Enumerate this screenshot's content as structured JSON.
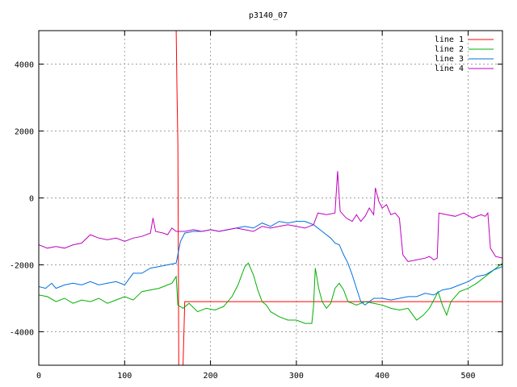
{
  "chart_data": {
    "type": "line",
    "title": "p3140_07",
    "xlabel": "",
    "ylabel": "",
    "xlim": [
      0,
      540
    ],
    "ylim": [
      -5000,
      5000
    ],
    "xticks": [
      0,
      100,
      200,
      300,
      400,
      500
    ],
    "yticks": [
      -4000,
      -2000,
      0,
      2000,
      4000
    ],
    "grid": true,
    "legend_position": "top-right",
    "series": [
      {
        "name": "line 1",
        "color": "#ff0000",
        "points": [
          [
            160,
            5000
          ],
          [
            161,
            3200
          ],
          [
            162,
            1600
          ],
          [
            163,
            -5000
          ],
          [
            168,
            -5000
          ],
          [
            170,
            -3100
          ],
          [
            540,
            -3100
          ]
        ]
      },
      {
        "name": "line 2",
        "color": "#00b000",
        "points": [
          [
            0,
            -2900
          ],
          [
            10,
            -2950
          ],
          [
            20,
            -3100
          ],
          [
            30,
            -3000
          ],
          [
            40,
            -3150
          ],
          [
            50,
            -3050
          ],
          [
            60,
            -3100
          ],
          [
            70,
            -3000
          ],
          [
            80,
            -3150
          ],
          [
            90,
            -3050
          ],
          [
            100,
            -2950
          ],
          [
            110,
            -3050
          ],
          [
            120,
            -2800
          ],
          [
            130,
            -2750
          ],
          [
            140,
            -2700
          ],
          [
            150,
            -2600
          ],
          [
            155,
            -2550
          ],
          [
            160,
            -2350
          ],
          [
            162,
            -3200
          ],
          [
            168,
            -3300
          ],
          [
            175,
            -3150
          ],
          [
            185,
            -3400
          ],
          [
            195,
            -3300
          ],
          [
            205,
            -3350
          ],
          [
            215,
            -3250
          ],
          [
            225,
            -2950
          ],
          [
            232,
            -2600
          ],
          [
            240,
            -2050
          ],
          [
            244,
            -1950
          ],
          [
            250,
            -2300
          ],
          [
            255,
            -2750
          ],
          [
            260,
            -3100
          ],
          [
            265,
            -3200
          ],
          [
            270,
            -3400
          ],
          [
            280,
            -3550
          ],
          [
            290,
            -3650
          ],
          [
            300,
            -3650
          ],
          [
            310,
            -3750
          ],
          [
            318,
            -3750
          ],
          [
            320,
            -3250
          ],
          [
            322,
            -2100
          ],
          [
            326,
            -2700
          ],
          [
            330,
            -3100
          ],
          [
            335,
            -3300
          ],
          [
            340,
            -3150
          ],
          [
            345,
            -2700
          ],
          [
            350,
            -2550
          ],
          [
            355,
            -2750
          ],
          [
            360,
            -3100
          ],
          [
            370,
            -3200
          ],
          [
            380,
            -3100
          ],
          [
            390,
            -3150
          ],
          [
            400,
            -3200
          ],
          [
            410,
            -3300
          ],
          [
            420,
            -3350
          ],
          [
            430,
            -3300
          ],
          [
            440,
            -3650
          ],
          [
            448,
            -3500
          ],
          [
            455,
            -3300
          ],
          [
            460,
            -3050
          ],
          [
            465,
            -2800
          ],
          [
            470,
            -3200
          ],
          [
            475,
            -3500
          ],
          [
            480,
            -3100
          ],
          [
            490,
            -2800
          ],
          [
            500,
            -2700
          ],
          [
            510,
            -2550
          ],
          [
            520,
            -2350
          ],
          [
            530,
            -2150
          ],
          [
            540,
            -1950
          ]
        ]
      },
      {
        "name": "line 3",
        "color": "#0070e0",
        "points": [
          [
            0,
            -2650
          ],
          [
            8,
            -2700
          ],
          [
            15,
            -2550
          ],
          [
            20,
            -2700
          ],
          [
            30,
            -2600
          ],
          [
            40,
            -2550
          ],
          [
            50,
            -2600
          ],
          [
            60,
            -2500
          ],
          [
            70,
            -2600
          ],
          [
            80,
            -2550
          ],
          [
            90,
            -2500
          ],
          [
            100,
            -2600
          ],
          [
            110,
            -2250
          ],
          [
            120,
            -2250
          ],
          [
            130,
            -2100
          ],
          [
            140,
            -2050
          ],
          [
            150,
            -2000
          ],
          [
            160,
            -1950
          ],
          [
            165,
            -1300
          ],
          [
            170,
            -1050
          ],
          [
            180,
            -1000
          ],
          [
            190,
            -1000
          ],
          [
            200,
            -950
          ],
          [
            210,
            -1000
          ],
          [
            220,
            -950
          ],
          [
            230,
            -900
          ],
          [
            240,
            -850
          ],
          [
            250,
            -900
          ],
          [
            260,
            -750
          ],
          [
            270,
            -850
          ],
          [
            280,
            -700
          ],
          [
            290,
            -750
          ],
          [
            300,
            -700
          ],
          [
            310,
            -700
          ],
          [
            320,
            -800
          ],
          [
            330,
            -1000
          ],
          [
            340,
            -1200
          ],
          [
            345,
            -1350
          ],
          [
            350,
            -1400
          ],
          [
            355,
            -1700
          ],
          [
            360,
            -1950
          ],
          [
            365,
            -2300
          ],
          [
            370,
            -2700
          ],
          [
            375,
            -3100
          ],
          [
            380,
            -3200
          ],
          [
            390,
            -3000
          ],
          [
            400,
            -3000
          ],
          [
            410,
            -3050
          ],
          [
            420,
            -3000
          ],
          [
            430,
            -2950
          ],
          [
            440,
            -2950
          ],
          [
            450,
            -2850
          ],
          [
            460,
            -2900
          ],
          [
            470,
            -2750
          ],
          [
            480,
            -2700
          ],
          [
            490,
            -2600
          ],
          [
            500,
            -2500
          ],
          [
            510,
            -2350
          ],
          [
            520,
            -2300
          ],
          [
            530,
            -2150
          ],
          [
            540,
            -2050
          ]
        ]
      },
      {
        "name": "line 4",
        "color": "#c000c0",
        "points": [
          [
            0,
            -1400
          ],
          [
            10,
            -1500
          ],
          [
            20,
            -1450
          ],
          [
            30,
            -1500
          ],
          [
            40,
            -1400
          ],
          [
            50,
            -1350
          ],
          [
            60,
            -1100
          ],
          [
            70,
            -1200
          ],
          [
            80,
            -1250
          ],
          [
            90,
            -1200
          ],
          [
            100,
            -1300
          ],
          [
            110,
            -1200
          ],
          [
            120,
            -1150
          ],
          [
            130,
            -1050
          ],
          [
            133,
            -600
          ],
          [
            136,
            -1000
          ],
          [
            145,
            -1050
          ],
          [
            150,
            -1100
          ],
          [
            155,
            -900
          ],
          [
            160,
            -1000
          ],
          [
            170,
            -1000
          ],
          [
            180,
            -950
          ],
          [
            190,
            -1000
          ],
          [
            200,
            -950
          ],
          [
            210,
            -1000
          ],
          [
            220,
            -950
          ],
          [
            230,
            -900
          ],
          [
            240,
            -950
          ],
          [
            250,
            -1000
          ],
          [
            260,
            -850
          ],
          [
            270,
            -900
          ],
          [
            280,
            -850
          ],
          [
            290,
            -800
          ],
          [
            300,
            -850
          ],
          [
            310,
            -900
          ],
          [
            320,
            -800
          ],
          [
            325,
            -450
          ],
          [
            335,
            -500
          ],
          [
            345,
            -450
          ],
          [
            348,
            800
          ],
          [
            351,
            -400
          ],
          [
            358,
            -600
          ],
          [
            365,
            -700
          ],
          [
            370,
            -500
          ],
          [
            375,
            -700
          ],
          [
            380,
            -550
          ],
          [
            385,
            -300
          ],
          [
            390,
            -500
          ],
          [
            392,
            300
          ],
          [
            396,
            -100
          ],
          [
            400,
            -300
          ],
          [
            405,
            -200
          ],
          [
            410,
            -500
          ],
          [
            415,
            -450
          ],
          [
            420,
            -600
          ],
          [
            424,
            -1700
          ],
          [
            430,
            -1900
          ],
          [
            440,
            -1850
          ],
          [
            450,
            -1800
          ],
          [
            455,
            -1750
          ],
          [
            460,
            -1850
          ],
          [
            464,
            -1800
          ],
          [
            466,
            -450
          ],
          [
            475,
            -500
          ],
          [
            485,
            -550
          ],
          [
            495,
            -450
          ],
          [
            505,
            -600
          ],
          [
            515,
            -500
          ],
          [
            520,
            -550
          ],
          [
            523,
            -450
          ],
          [
            526,
            -1500
          ],
          [
            532,
            -1750
          ],
          [
            540,
            -1800
          ]
        ]
      }
    ]
  }
}
